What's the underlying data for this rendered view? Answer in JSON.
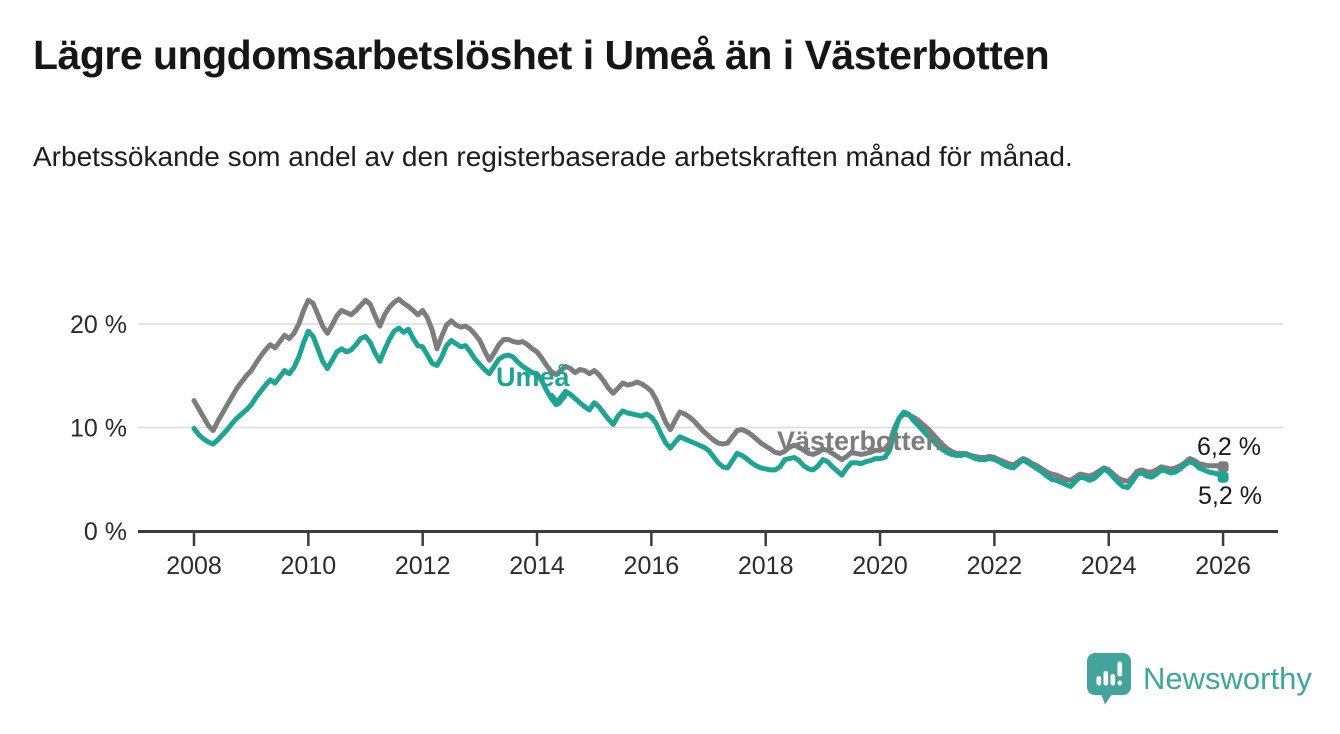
{
  "header": {
    "title": "Lägre ungdomsarbetslöshet i Umeå än i Västerbotten",
    "subtitle": "Arbetssökande som andel av den registerbaserade arbetskraften månad för månad."
  },
  "chart_data": {
    "type": "line",
    "title": "Lägre ungdomsarbetslöshet i Umeå än i Västerbotten",
    "xlabel": "",
    "ylabel": "Arbetssökande som andel av den registerbaserade arbetskraften",
    "x_axis": {
      "start_year": 2008,
      "end_year": 2026,
      "interval": "monthly",
      "ticks": [
        2008,
        2010,
        2012,
        2014,
        2016,
        2018,
        2020,
        2022,
        2024,
        2026
      ]
    },
    "y_axis": {
      "unit": "%",
      "ylim": [
        0,
        24
      ],
      "gridlines": [
        10,
        20
      ],
      "ticks": [
        {
          "value": 0,
          "label": "0 %"
        },
        {
          "value": 10,
          "label": "10 %"
        },
        {
          "value": 20,
          "label": "20 %"
        }
      ]
    },
    "legend_position": "inline-labels",
    "grid": "horizontal-only",
    "series": [
      {
        "name": "Västerbotten",
        "color": "#7d7d7d",
        "end_label": "6,2 %",
        "latest_value": 6.2,
        "values": [
          12.6,
          11.8,
          11.0,
          10.2,
          9.7,
          10.6,
          11.4,
          12.2,
          13.0,
          13.8,
          14.4,
          15.0,
          15.5,
          16.2,
          16.9,
          17.5,
          18.0,
          17.7,
          18.3,
          18.9,
          18.6,
          19.1,
          20.0,
          21.3,
          22.3,
          22.0,
          20.9,
          19.8,
          19.1,
          19.9,
          20.8,
          21.3,
          21.1,
          20.9,
          21.3,
          21.8,
          22.3,
          21.9,
          20.8,
          19.8,
          20.9,
          21.6,
          22.1,
          22.4,
          22.0,
          21.7,
          21.3,
          20.9,
          21.3,
          20.6,
          19.4,
          17.6,
          18.8,
          19.9,
          20.3,
          19.9,
          19.7,
          19.8,
          19.5,
          19.0,
          18.4,
          17.4,
          16.5,
          17.2,
          18.0,
          18.5,
          18.5,
          18.3,
          18.2,
          18.3,
          18.0,
          17.6,
          17.3,
          16.7,
          16.0,
          15.4,
          15.1,
          15.5,
          15.9,
          15.7,
          15.3,
          15.6,
          15.5,
          15.2,
          15.5,
          15.1,
          14.5,
          13.8,
          13.3,
          13.8,
          14.3,
          14.1,
          14.2,
          14.4,
          14.2,
          13.9,
          13.5,
          12.7,
          11.6,
          10.5,
          9.8,
          10.7,
          11.5,
          11.3,
          11.0,
          10.6,
          10.1,
          9.6,
          9.2,
          8.8,
          8.5,
          8.4,
          8.5,
          9.1,
          9.7,
          9.8,
          9.6,
          9.3,
          8.9,
          8.5,
          8.2,
          7.9,
          7.6,
          7.5,
          7.7,
          8.1,
          8.3,
          8.1,
          7.8,
          7.5,
          7.4,
          7.6,
          7.9,
          7.8,
          7.5,
          7.2,
          6.9,
          7.2,
          7.6,
          7.5,
          7.4,
          7.5,
          7.6,
          7.8,
          7.8,
          7.9,
          8.5,
          9.9,
          10.9,
          11.3,
          11.2,
          11.0,
          10.7,
          10.3,
          9.9,
          9.4,
          8.9,
          8.4,
          8.0,
          7.7,
          7.5,
          7.5,
          7.5,
          7.3,
          7.2,
          7.1,
          7.1,
          7.2,
          7.1,
          6.9,
          6.7,
          6.5,
          6.4,
          6.7,
          7.0,
          6.8,
          6.5,
          6.3,
          6.0,
          5.7,
          5.5,
          5.4,
          5.2,
          5.0,
          4.9,
          5.2,
          5.5,
          5.4,
          5.3,
          5.5,
          5.8,
          6.1,
          5.9,
          5.5,
          5.1,
          4.9,
          4.8,
          5.2,
          5.8,
          5.9,
          5.7,
          5.7,
          5.9,
          6.2,
          6.1,
          6.0,
          6.1,
          6.3,
          6.6,
          7.0,
          6.8,
          6.5,
          6.4,
          6.3,
          6.3,
          6.3,
          6.2
        ]
      },
      {
        "name": "Umeå",
        "color": "#1ea493",
        "end_label": "5,2 %",
        "latest_value": 5.2,
        "values": [
          9.9,
          9.3,
          8.9,
          8.6,
          8.4,
          8.8,
          9.3,
          9.8,
          10.4,
          10.9,
          11.3,
          11.7,
          12.2,
          12.9,
          13.5,
          14.1,
          14.6,
          14.3,
          14.9,
          15.5,
          15.2,
          15.8,
          16.8,
          18.2,
          19.3,
          18.8,
          17.6,
          16.4,
          15.7,
          16.5,
          17.3,
          17.6,
          17.3,
          17.5,
          18.0,
          18.6,
          18.8,
          18.2,
          17.2,
          16.4,
          17.5,
          18.5,
          19.3,
          19.6,
          19.2,
          19.5,
          18.6,
          17.9,
          17.8,
          17.0,
          16.2,
          16.0,
          16.8,
          17.9,
          18.4,
          18.1,
          17.8,
          17.9,
          17.3,
          16.6,
          16.1,
          15.6,
          15.2,
          15.9,
          16.6,
          16.9,
          17.0,
          16.8,
          16.3,
          15.9,
          15.6,
          15.3,
          15.2,
          14.5,
          13.6,
          12.8,
          12.2,
          12.9,
          13.5,
          13.2,
          12.8,
          12.4,
          12.0,
          11.7,
          12.4,
          12.0,
          11.4,
          10.8,
          10.3,
          11.1,
          11.6,
          11.4,
          11.3,
          11.2,
          11.1,
          11.3,
          11.0,
          10.4,
          9.4,
          8.5,
          8.0,
          8.6,
          9.1,
          8.9,
          8.7,
          8.5,
          8.3,
          8.1,
          7.8,
          7.2,
          6.6,
          6.2,
          6.1,
          6.8,
          7.5,
          7.3,
          7.0,
          6.6,
          6.3,
          6.1,
          6.0,
          5.9,
          5.9,
          6.2,
          6.9,
          7.0,
          7.1,
          6.8,
          6.3,
          6.0,
          5.9,
          6.3,
          6.9,
          6.7,
          6.2,
          5.8,
          5.4,
          6.1,
          6.6,
          6.6,
          6.5,
          6.7,
          6.8,
          7.0,
          7.0,
          7.1,
          7.8,
          9.5,
          10.9,
          11.5,
          11.3,
          10.7,
          10.2,
          9.7,
          9.2,
          8.8,
          8.3,
          7.9,
          7.6,
          7.4,
          7.3,
          7.3,
          7.4,
          7.2,
          7.0,
          6.9,
          6.9,
          7.0,
          6.9,
          6.7,
          6.4,
          6.2,
          6.1,
          6.5,
          6.9,
          6.6,
          6.3,
          6.0,
          5.7,
          5.3,
          5.0,
          4.9,
          4.7,
          4.5,
          4.3,
          4.8,
          5.2,
          5.1,
          4.9,
          5.1,
          5.5,
          6.0,
          5.7,
          5.2,
          4.7,
          4.3,
          4.2,
          4.8,
          5.5,
          5.6,
          5.3,
          5.2,
          5.5,
          5.9,
          5.8,
          5.6,
          5.7,
          6.0,
          6.4,
          6.7,
          6.5,
          6.1,
          5.9,
          5.7,
          5.6,
          5.5,
          5.2
        ]
      }
    ],
    "annotations": {
      "umea_label": "Umeå",
      "vasterbotten_label": "Västerbotten",
      "end_label_top": "6,2 %",
      "end_label_bottom": "5,2 %"
    }
  },
  "branding": {
    "logo_text": "Newsworthy",
    "color": "#3da69d"
  },
  "colors": {
    "umea_line": "#1ea493",
    "vasterbotten_line": "#7d7d7d",
    "gridline": "#dcdcdc",
    "axis": "#3c3c3c"
  }
}
